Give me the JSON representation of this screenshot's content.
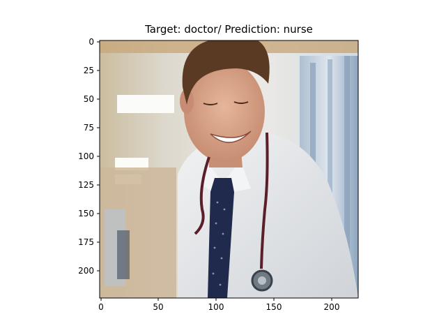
{
  "title": "Target: doctor/ Prediction: nurse",
  "chart_data": {
    "type": "image",
    "title": "Target: doctor/ Prediction: nurse",
    "xlabel": "",
    "ylabel": "",
    "xlim": [
      0,
      224
    ],
    "ylim": [
      224,
      0
    ],
    "xticks": [
      0,
      50,
      100,
      150,
      200
    ],
    "yticks": [
      0,
      25,
      50,
      75,
      100,
      125,
      150,
      175,
      200
    ],
    "xtick_labels": [
      "0",
      "50",
      "100",
      "150",
      "200"
    ],
    "ytick_labels": [
      "0",
      "25",
      "50",
      "75",
      "100",
      "125",
      "150",
      "175",
      "200"
    ],
    "grid": false,
    "legend": "none"
  },
  "image": {
    "description_icon": "smiling-doctor-photo-icon",
    "colors": {
      "hospital_wall": "#d9d6cf",
      "coat_white": "#e8e9ea",
      "hair_brown": "#5a3a22",
      "skin": "#d9a68c",
      "tie_navy": "#1f2a4d",
      "stethoscope": "#5a1f2a",
      "curtain_blue": "#9fb3c8"
    }
  }
}
